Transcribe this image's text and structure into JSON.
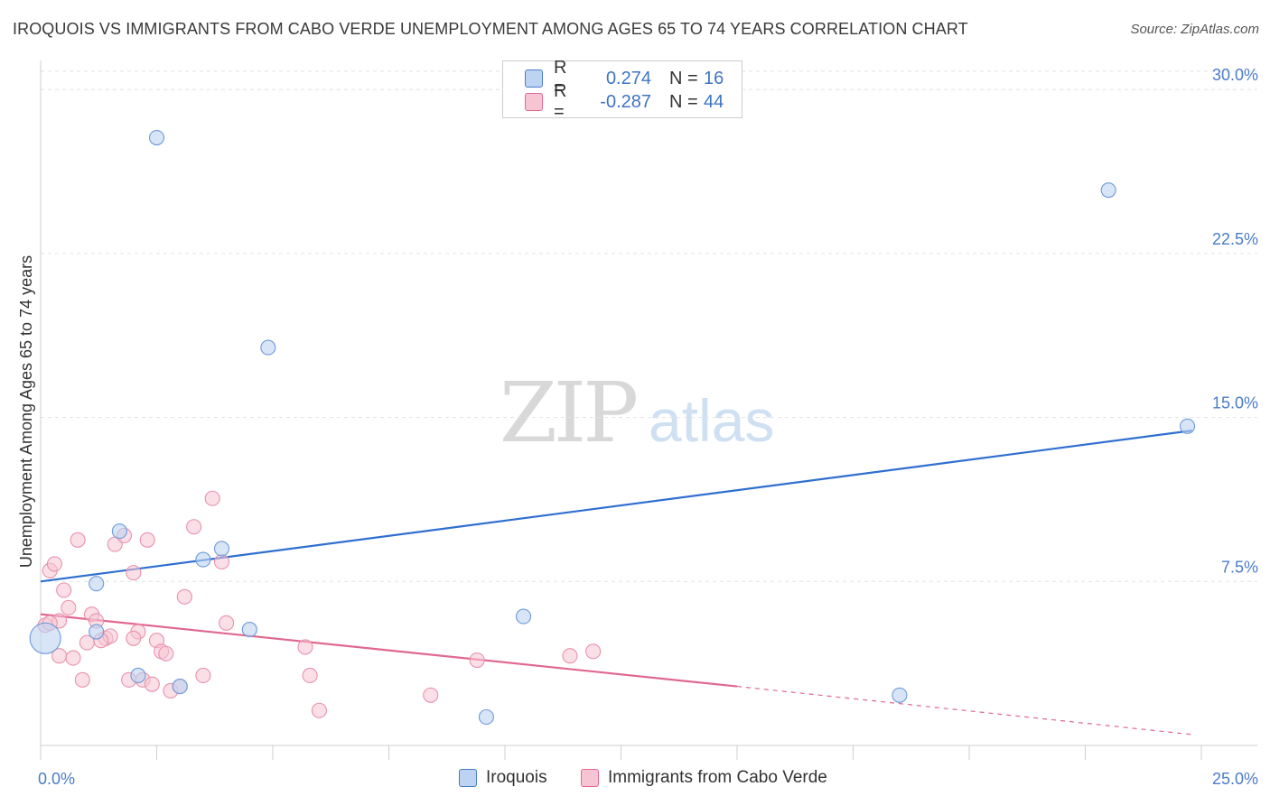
{
  "title": "IROQUOIS VS IMMIGRANTS FROM CABO VERDE UNEMPLOYMENT AMONG AGES 65 TO 74 YEARS CORRELATION CHART",
  "source": "Source: ZipAtlas.com",
  "watermark": {
    "zip": "ZIP",
    "atlas": "atlas"
  },
  "legend": {
    "rows": [
      {
        "r_label": "R =",
        "r_value": "0.274",
        "n_label": "N =",
        "n_value": "16"
      },
      {
        "r_label": "R =",
        "r_value": "-0.287",
        "n_label": "N =",
        "n_value": "44"
      }
    ]
  },
  "colors": {
    "blue": "#4a7cc7",
    "blue_fill": "#bcd3f2",
    "pink": "#e0688f",
    "pink_fill": "#f6c4d3"
  },
  "chart_data": {
    "type": "scatter",
    "title": "IROQUOIS VS IMMIGRANTS FROM CABO VERDE UNEMPLOYMENT AMONG AGES 65 TO 74 YEARS CORRELATION CHART",
    "xlabel": "",
    "ylabel": "Unemployment Among Ages 65 to 74 years",
    "xlim": [
      0,
      25
    ],
    "ylim": [
      0,
      31
    ],
    "x_ticks": [
      "0.0%",
      "25.0%"
    ],
    "y_ticks": [
      {
        "value": 7.5,
        "label": "7.5%"
      },
      {
        "value": 15.0,
        "label": "15.0%"
      },
      {
        "value": 22.5,
        "label": "22.5%"
      },
      {
        "value": 30.0,
        "label": "30.0%"
      }
    ],
    "series": [
      {
        "name": "Iroquois",
        "color": "#4a7cc7",
        "points": [
          [
            0.1,
            4.9
          ],
          [
            1.2,
            5.2
          ],
          [
            1.2,
            7.4
          ],
          [
            1.7,
            9.8
          ],
          [
            2.1,
            3.2
          ],
          [
            2.5,
            27.8
          ],
          [
            3.0,
            2.7
          ],
          [
            3.5,
            8.5
          ],
          [
            3.9,
            9.0
          ],
          [
            4.5,
            5.3
          ],
          [
            4.9,
            18.2
          ],
          [
            9.6,
            1.3
          ],
          [
            10.4,
            5.9
          ],
          [
            18.5,
            2.3
          ],
          [
            23.0,
            25.4
          ],
          [
            24.7,
            14.6
          ]
        ],
        "trend": {
          "x0": 0,
          "y0": 7.5,
          "x1": 24.8,
          "y1": 14.4
        }
      },
      {
        "name": "Immigrants from Cabo Verde",
        "color": "#e0688f",
        "points": [
          [
            0.1,
            5.5
          ],
          [
            0.2,
            8.0
          ],
          [
            0.3,
            8.3
          ],
          [
            0.4,
            5.7
          ],
          [
            0.5,
            7.1
          ],
          [
            0.6,
            6.3
          ],
          [
            0.8,
            9.4
          ],
          [
            0.9,
            3.0
          ],
          [
            1.0,
            4.7
          ],
          [
            1.1,
            6.0
          ],
          [
            1.2,
            5.7
          ],
          [
            1.4,
            4.9
          ],
          [
            1.5,
            5.0
          ],
          [
            1.6,
            9.2
          ],
          [
            1.8,
            9.6
          ],
          [
            1.9,
            3.0
          ],
          [
            2.0,
            7.9
          ],
          [
            2.1,
            5.2
          ],
          [
            2.2,
            3.0
          ],
          [
            2.3,
            9.4
          ],
          [
            2.4,
            2.8
          ],
          [
            2.5,
            4.8
          ],
          [
            2.6,
            4.3
          ],
          [
            2.7,
            4.2
          ],
          [
            2.8,
            2.5
          ],
          [
            3.0,
            2.7
          ],
          [
            3.1,
            6.8
          ],
          [
            3.3,
            10.0
          ],
          [
            3.5,
            3.2
          ],
          [
            3.7,
            11.3
          ],
          [
            3.9,
            8.4
          ],
          [
            4.0,
            5.6
          ],
          [
            5.7,
            4.5
          ],
          [
            5.8,
            3.2
          ],
          [
            6.0,
            1.6
          ],
          [
            8.4,
            2.3
          ],
          [
            9.4,
            3.9
          ],
          [
            11.4,
            4.1
          ],
          [
            11.9,
            4.3
          ],
          [
            0.4,
            4.1
          ],
          [
            0.7,
            4.0
          ],
          [
            1.3,
            4.8
          ],
          [
            0.2,
            5.6
          ],
          [
            2.0,
            4.9
          ]
        ],
        "trend": {
          "x0": 0,
          "y0": 6.0,
          "x1": 15.0,
          "y1": 2.7
        },
        "trend_dashed": {
          "x0": 15.0,
          "y0": 2.7,
          "x1": 24.8,
          "y1": 0.5
        }
      }
    ]
  },
  "bottom_legend": {
    "items": [
      {
        "label": "Iroquois"
      },
      {
        "label": "Immigrants from Cabo Verde"
      }
    ]
  }
}
